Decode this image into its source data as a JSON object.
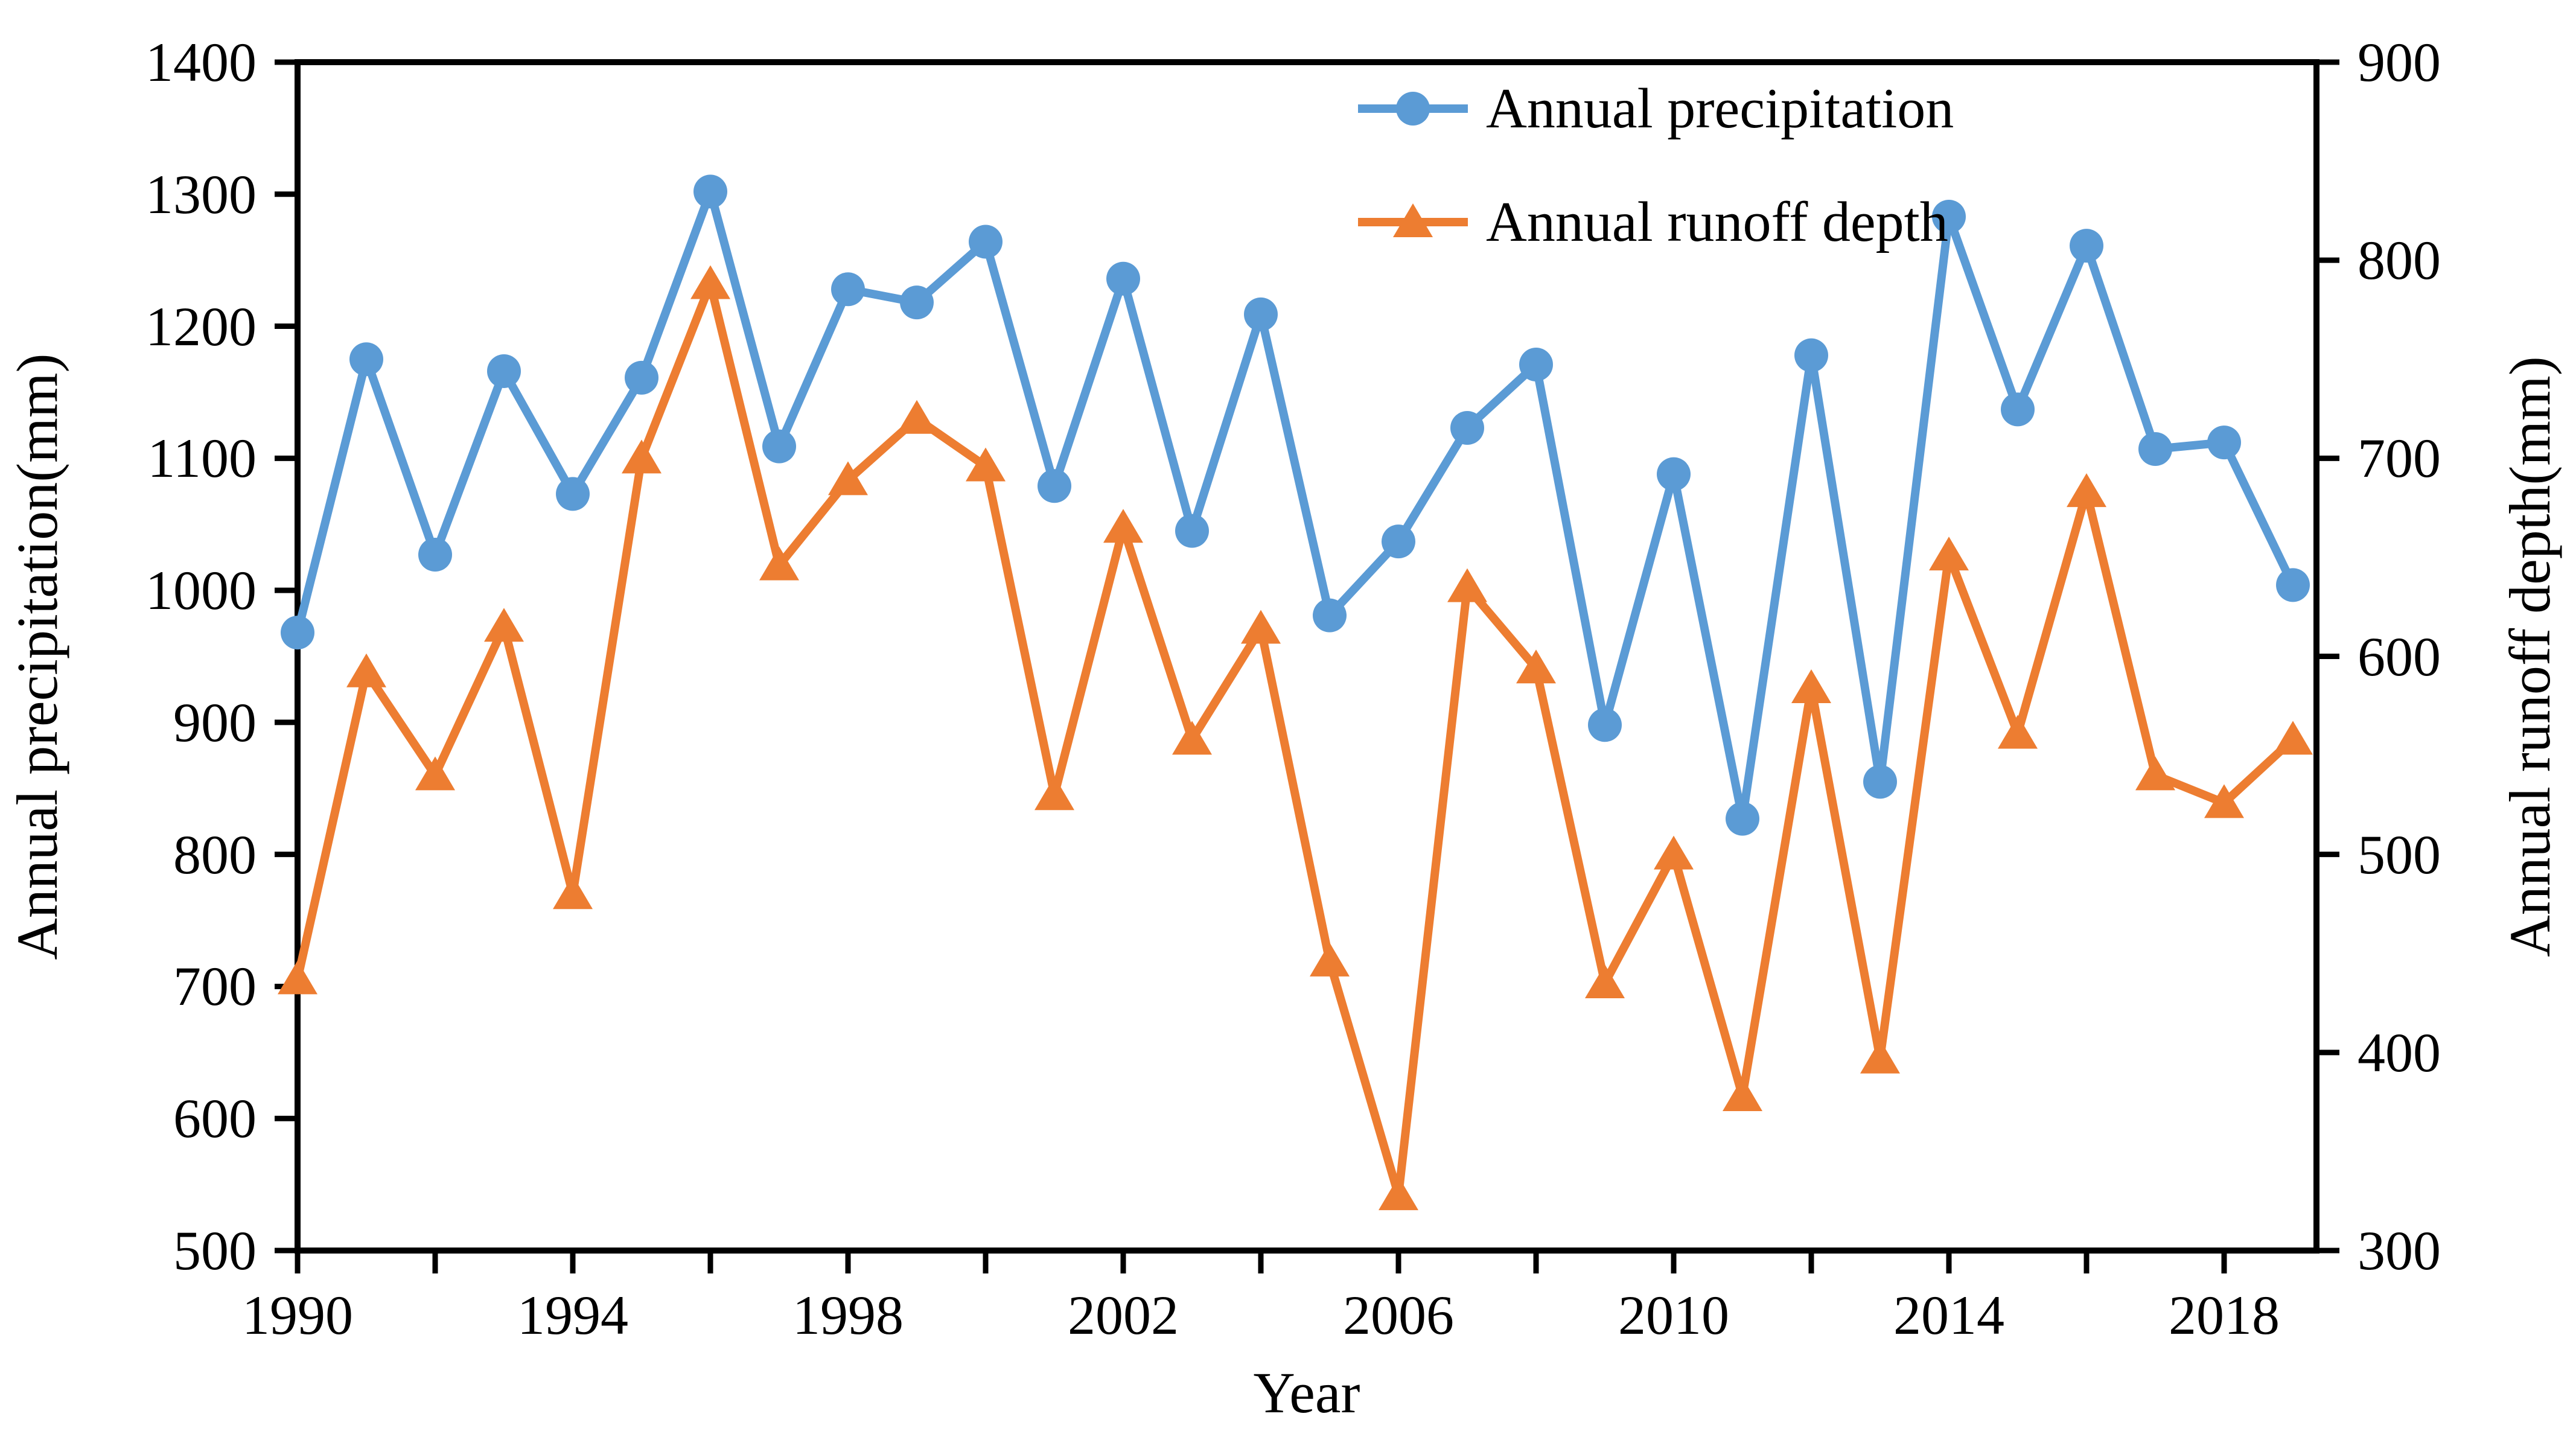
{
  "background": "#FFFFFF",
  "frame_color": "#000000",
  "chart_data": {
    "type": "line",
    "title": "",
    "grid": false,
    "x": {
      "label": "Year",
      "categories": [
        1990,
        1991,
        1992,
        1993,
        1994,
        1995,
        1996,
        1997,
        1998,
        1999,
        2000,
        2001,
        2002,
        2003,
        2004,
        2005,
        2006,
        2007,
        2008,
        2009,
        2010,
        2011,
        2012,
        2013,
        2014,
        2015,
        2016,
        2017,
        2018,
        2019
      ],
      "labeled_years": [
        1990,
        1994,
        1998,
        2002,
        2006,
        2010,
        2014,
        2018
      ],
      "minor_tick_years": [
        1990,
        1992,
        1994,
        1996,
        1998,
        2000,
        2002,
        2004,
        2006,
        2008,
        2010,
        2012,
        2014,
        2016,
        2018
      ]
    },
    "y_left": {
      "label": "Annual precipitation(mm)",
      "min": 500,
      "max": 1400,
      "tick_step": 100,
      "ticks": [
        1400,
        1300,
        1200,
        1100,
        1000,
        900,
        800,
        700,
        600,
        500
      ]
    },
    "y_right": {
      "label": "Annual runoff depth(mm)",
      "min": 300,
      "max": 900,
      "tick_step": 100,
      "ticks": [
        900,
        800,
        700,
        600,
        500,
        400,
        300
      ]
    },
    "series": [
      {
        "name": "Annual precipitation",
        "axis": "left",
        "color": "#5B9BD5",
        "marker": "circle",
        "values": [
          968,
          1175,
          1027,
          1166,
          1073,
          1161,
          1302,
          1109,
          1228,
          1218,
          1264,
          1079,
          1236,
          1045,
          1209,
          981,
          1037,
          1123,
          1171,
          898,
          1088,
          827,
          1178,
          855,
          1283,
          1137,
          1261,
          1107,
          1112,
          1004
        ]
      },
      {
        "name": "Annual runoff depth",
        "axis": "right",
        "color": "#ED7D31",
        "marker": "triangle",
        "values": [
          437,
          592,
          540,
          615,
          480,
          700,
          788,
          646,
          689,
          720,
          696,
          530,
          665,
          558,
          614,
          446,
          328,
          635,
          594,
          435,
          500,
          378,
          584,
          397,
          651,
          561,
          683,
          540,
          526,
          558
        ]
      }
    ],
    "legend": {
      "position": "inside-top-center",
      "items": [
        {
          "label": "Annual precipitation"
        },
        {
          "label": "Annual runoff depth"
        }
      ]
    }
  }
}
